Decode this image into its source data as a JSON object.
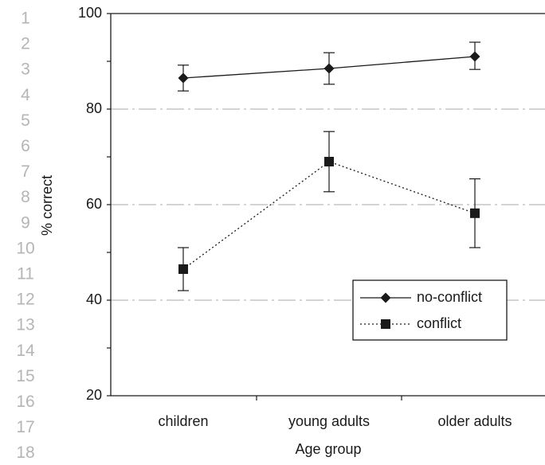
{
  "line_numbers": [
    "1",
    "2",
    "3",
    "4",
    "5",
    "6",
    "7",
    "8",
    "9",
    "10",
    "11",
    "12",
    "13",
    "14",
    "15",
    "16",
    "17",
    "18"
  ],
  "chart_data": {
    "type": "line",
    "title": "",
    "xlabel": "Age group",
    "ylabel": "% correct",
    "categories": [
      "children",
      "young adults",
      "older adults"
    ],
    "ylim": [
      20,
      100
    ],
    "yticks": [
      20,
      40,
      60,
      80,
      100
    ],
    "grid": "dashed horizontal at 40, 60, 80",
    "legend_position": "lower-right",
    "series": [
      {
        "name": "no-conflict",
        "marker": "diamond",
        "line_style": "solid",
        "values": [
          86.5,
          88.5,
          91.0
        ],
        "error_low": [
          83.8,
          85.2,
          88.3
        ],
        "error_high": [
          89.2,
          91.8,
          94.0
        ]
      },
      {
        "name": "conflict",
        "marker": "square",
        "line_style": "dotted",
        "values": [
          46.5,
          69.0,
          58.2
        ],
        "error_low": [
          42.0,
          62.7,
          51.0
        ],
        "error_high": [
          51.0,
          75.3,
          65.4
        ]
      }
    ]
  },
  "colors": {
    "ink": "#1a1a1a",
    "grid": "#bbbbbb",
    "line_numbers": "#b5b5b5"
  }
}
